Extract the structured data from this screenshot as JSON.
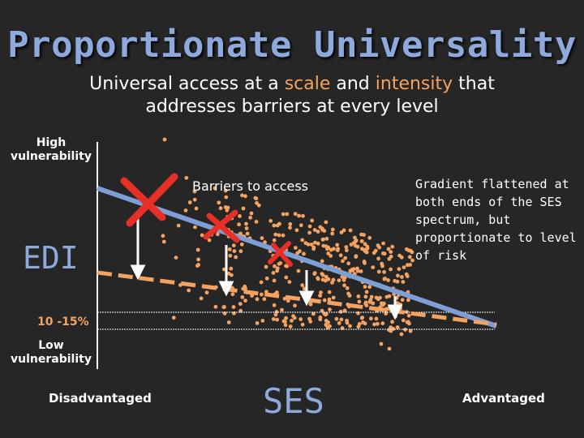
{
  "title": "Proportionate Universality",
  "subtitle": {
    "line1_a": "Universal access at a ",
    "scale": "scale",
    "line1_b": " and ",
    "intensity": "intensity",
    "line1_c": " that",
    "line2": "addresses barriers at every level"
  },
  "axis": {
    "high": "High vulnerability",
    "low": "Low vulnerability",
    "y_title": "EDI",
    "x_title": "SES",
    "x_left": "Disadvantaged",
    "x_right": "Advantaged",
    "band": "10 -15%"
  },
  "annotations": {
    "barriers": "Barriers to access",
    "gradient": "Gradient flattened at both ends of the SES spectrum, but proportionate to level of risk"
  },
  "colors": {
    "title": "#8ea9db",
    "dots": "#f4a261",
    "line_blue": "#7d9fd6",
    "line_orange": "#f4a261",
    "cross": "#e63027"
  }
}
